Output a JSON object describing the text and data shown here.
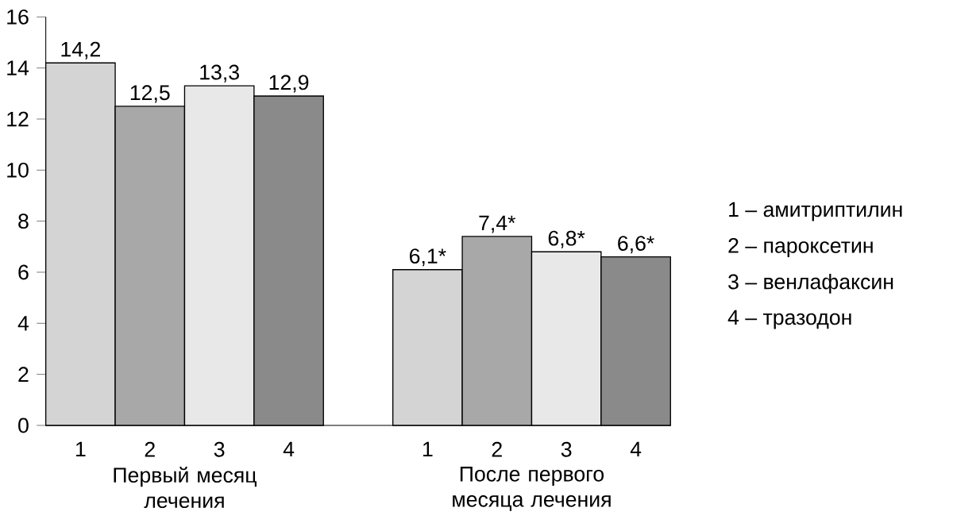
{
  "chart_data": {
    "type": "bar",
    "categories": [
      "1",
      "2",
      "3",
      "4",
      null,
      "1",
      "2",
      "3",
      "4"
    ],
    "values": [
      14.2,
      12.5,
      13.3,
      12.9,
      null,
      6.1,
      7.4,
      6.8,
      6.6
    ],
    "colors": [
      "#d4d4d4",
      "#a8a8a8",
      "#e8e8e8",
      "#8a8a8a",
      null,
      "#d4d4d4",
      "#a8a8a8",
      "#e8e8e8",
      "#8a8a8a"
    ],
    "value_labels": [
      "14,2",
      "12,5",
      "13,3",
      "12,9",
      null,
      "6,1*",
      "7,4*",
      "6,8*",
      "6,6*"
    ],
    "ylim": [
      0,
      16
    ],
    "yticks": [
      0,
      2,
      4,
      6,
      8,
      10,
      12,
      14,
      16
    ],
    "annotations": [
      "Первый месяц лечения",
      "После первого месяца лечения",
      "1 – амитриптилин",
      "2 – пароксетин",
      "3 – венлафаксин",
      "4 – тразодон"
    ]
  }
}
